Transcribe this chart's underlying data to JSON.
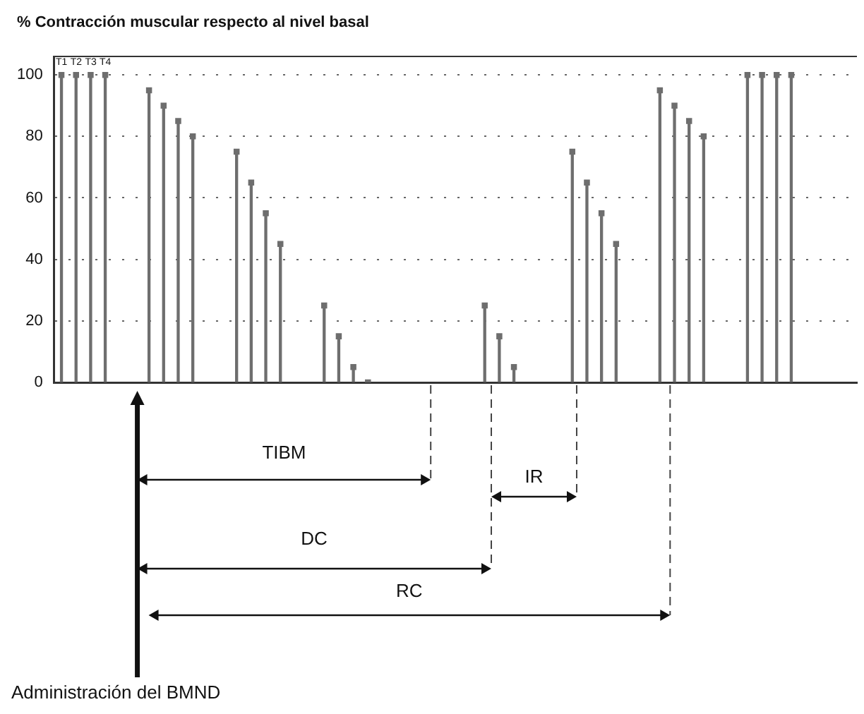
{
  "chart_data": {
    "type": "lollipop",
    "ylabel": "% Contracción muscular respecto al nivel basal",
    "categories": [
      null,
      null,
      null,
      null,
      null,
      null,
      null,
      null,
      null,
      null,
      null,
      null,
      null,
      null,
      null,
      null,
      null,
      null,
      null,
      null,
      null,
      null,
      null,
      null,
      null,
      null,
      null,
      null,
      null,
      null,
      null,
      null,
      null,
      null,
      null,
      null,
      null,
      null,
      null,
      null,
      null,
      null,
      null,
      null,
      null,
      null,
      null,
      null,
      null,
      null,
      null,
      null,
      null,
      null,
      null
    ],
    "values": [
      100,
      100,
      100,
      100,
      null,
      null,
      95,
      90,
      85,
      80,
      null,
      null,
      75,
      65,
      55,
      45,
      null,
      null,
      25,
      15,
      5,
      0,
      null,
      null,
      null,
      null,
      null,
      null,
      null,
      25,
      15,
      5,
      null,
      null,
      null,
      75,
      65,
      55,
      45,
      null,
      null,
      95,
      90,
      85,
      80,
      null,
      null,
      100,
      100,
      100,
      100,
      null,
      null,
      null,
      null
    ],
    "color": "#6e6e6e",
    "ylim": [
      0,
      106
    ],
    "yticks": [
      0,
      20,
      40,
      60,
      80,
      100
    ],
    "grid": "y",
    "legend": false,
    "marker": "square",
    "annotations": [
      "T1",
      "T2",
      "T3",
      "T4",
      "TIBM",
      "IR",
      "DC",
      "RC",
      "Administración del BMND"
    ]
  }
}
